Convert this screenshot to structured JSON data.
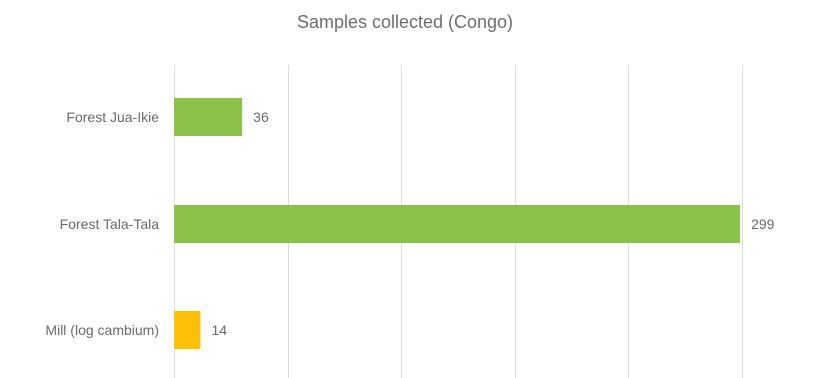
{
  "chart_data": {
    "type": "bar",
    "orientation": "horizontal",
    "title": "Samples collected (Congo)",
    "categories": [
      "Forest Jua-Ikie",
      "Forest Tala-Tala",
      "Mill (log cambium)"
    ],
    "values": [
      36,
      299,
      14
    ],
    "bar_colors": [
      "#8bc34a",
      "#8bc34a",
      "#ffc107"
    ],
    "xlim": [
      0,
      300
    ],
    "grid": true,
    "gridline_count": 6,
    "xlabel": "",
    "ylabel": ""
  }
}
